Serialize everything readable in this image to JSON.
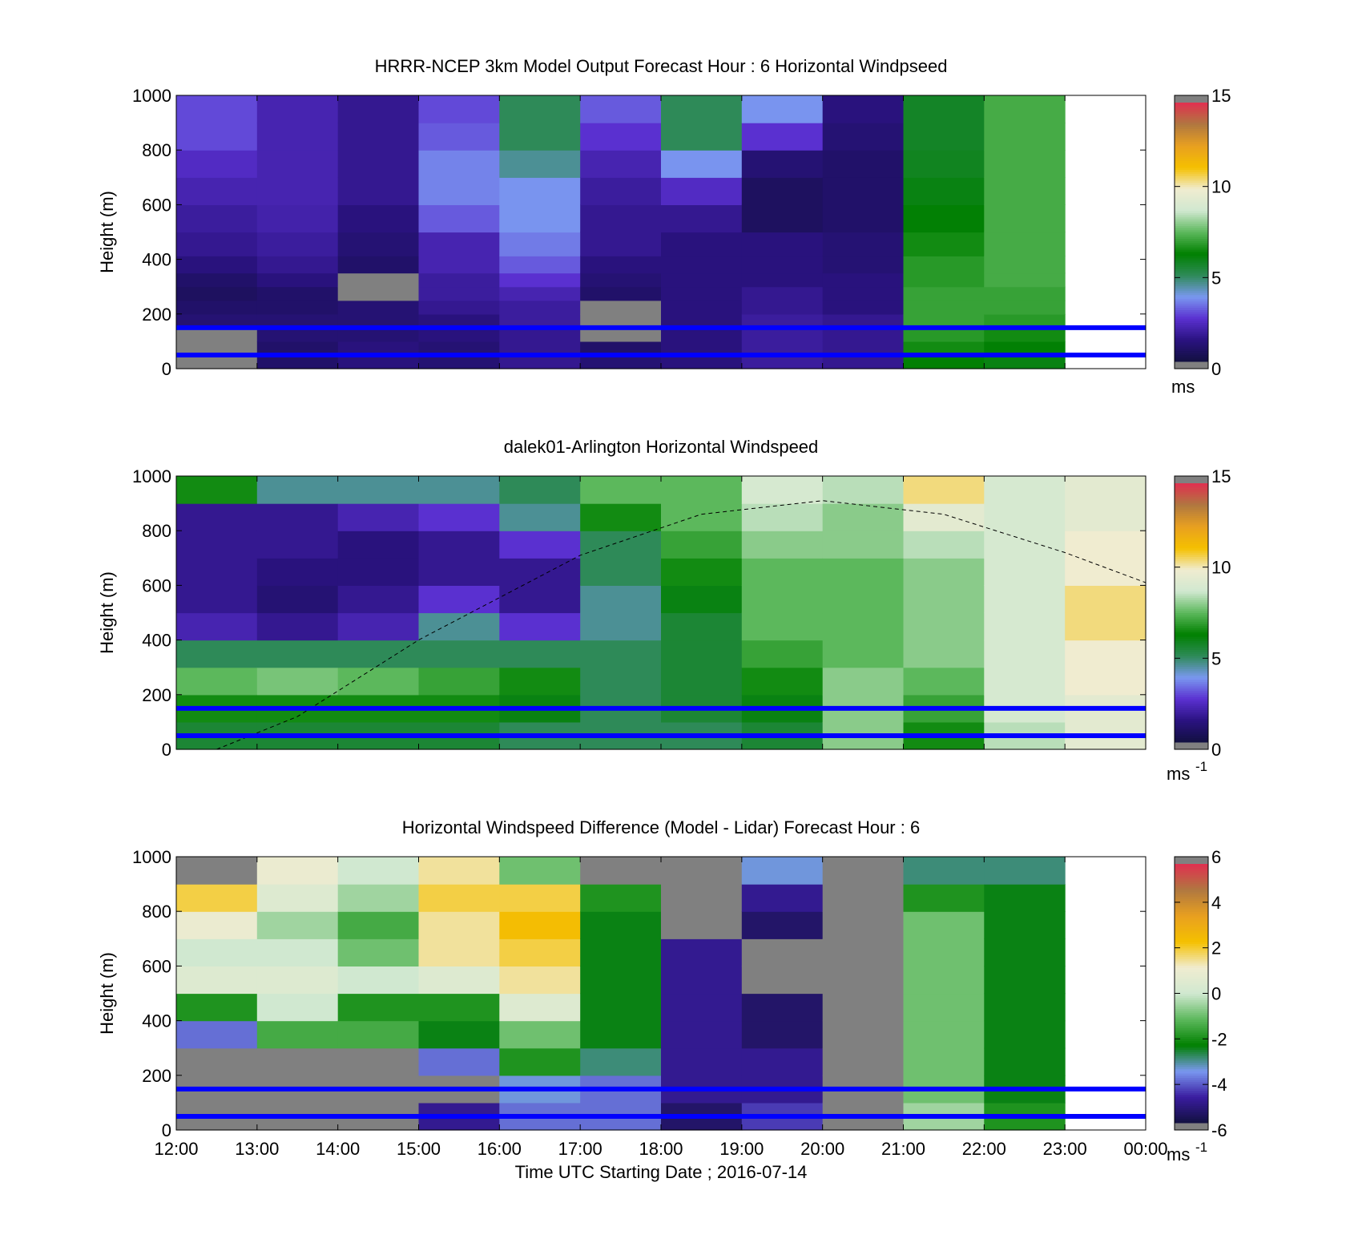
{
  "panels": [
    {
      "title": "HRRR-NCEP 3km Model Output   Forecast Hour : 6 Horizontal Windpseed",
      "ylabel": "Height (m)",
      "colorbar": {
        "min": 0,
        "max": 15,
        "ticks": [
          "0",
          "5",
          "10",
          "15"
        ],
        "unit": "ms",
        "unit_sup": ""
      }
    },
    {
      "title": "dalek01-Arlington  Horizontal Windspeed",
      "ylabel": "Height (m)",
      "colorbar": {
        "min": 0,
        "max": 15,
        "ticks": [
          "0",
          "5",
          "10",
          "15"
        ],
        "unit": "ms",
        "unit_sup": "-1"
      }
    },
    {
      "title": "Horizontal Windspeed Difference (Model - Lidar) Forecast Hour : 6",
      "ylabel": "Height (m)",
      "colorbar": {
        "min": -6,
        "max": 6,
        "ticks": [
          "-6",
          "-4",
          "-2",
          "0",
          "2",
          "4",
          "6"
        ],
        "unit": "ms",
        "unit_sup": "-1"
      }
    }
  ],
  "xlabel": "Time UTC  Starting Date ; 2016-07-14",
  "x_ticks": [
    "12:00",
    "13:00",
    "14:00",
    "15:00",
    "16:00",
    "17:00",
    "18:00",
    "19:00",
    "20:00",
    "21:00",
    "22:00",
    "23:00",
    "00:00"
  ],
  "y_ticks": [
    "0",
    "200",
    "400",
    "600",
    "800",
    "1000"
  ],
  "colors": {
    "reference_lines": "#0000ff",
    "missing": "#808080",
    "speed_colormap": [
      "#121040",
      "#2a1280",
      "#5a30d0",
      "#7a98f0",
      "#2e8a58",
      "#008000",
      "#5cb85c",
      "#d0e8d0",
      "#f0ecd0",
      "#f5c000",
      "#e8a020",
      "#b07840",
      "#e03050"
    ],
    "difference_colormap": [
      "#121040",
      "#3a1ca0",
      "#7a98f0",
      "#008000",
      "#5cb85c",
      "#d0e8d0",
      "#f0ecd0",
      "#f5c000",
      "#e8a020",
      "#b07840",
      "#e03050"
    ]
  },
  "chart_data": [
    {
      "type": "heatmap",
      "title": "HRRR-NCEP 3km Model Output   Forecast Hour : 6 Horizontal Windpseed",
      "xlabel": "",
      "ylabel": "Height (m)",
      "x_range_hours_utc": [
        12,
        24
      ],
      "ylim": [
        0,
        1000
      ],
      "clim": [
        0,
        15
      ],
      "colorbar_unit": "ms",
      "hour_columns": [
        "12:00",
        "13:00",
        "14:00",
        "15:00",
        "16:00",
        "17:00",
        "18:00",
        "19:00",
        "20:00",
        "21:00",
        "22:00"
      ],
      "height_levels_m": [
        25,
        75,
        125,
        175,
        225,
        275,
        325,
        375,
        450,
        550,
        650,
        750,
        850,
        950
      ],
      "values": [
        [
          null,
          null,
          null,
          1.0,
          0.8,
          0.6,
          0.8,
          1.2,
          1.5,
          1.7,
          2.0,
          2.3,
          2.8,
          2.8
        ],
        [
          0.8,
          0.8,
          1.0,
          1.0,
          0.8,
          0.8,
          1.2,
          1.5,
          1.7,
          1.9,
          2.0,
          2.0,
          2.0,
          2.0
        ],
        [
          1.2,
          1.2,
          1.0,
          1.0,
          1.0,
          null,
          null,
          0.8,
          1.0,
          1.2,
          1.5,
          1.5,
          1.5,
          1.5
        ],
        [
          1.0,
          1.0,
          1.2,
          1.2,
          1.5,
          1.7,
          1.7,
          2.0,
          2.0,
          3.0,
          3.5,
          3.5,
          3.0,
          2.8
        ],
        [
          1.5,
          1.5,
          1.5,
          1.7,
          1.7,
          2.0,
          2.5,
          3.0,
          3.4,
          3.7,
          3.7,
          4.5,
          5.0,
          5.0
        ],
        [
          1.0,
          0.8,
          null,
          null,
          null,
          0.8,
          1.0,
          1.2,
          1.5,
          1.5,
          1.7,
          2.0,
          2.5,
          3.0
        ],
        [
          1.2,
          1.2,
          1.2,
          1.2,
          1.2,
          1.2,
          1.2,
          1.2,
          1.2,
          1.5,
          2.3,
          3.7,
          5.0,
          5.0
        ],
        [
          1.7,
          1.7,
          1.7,
          1.7,
          1.5,
          1.5,
          1.2,
          1.2,
          1.2,
          0.6,
          0.6,
          1.0,
          2.5,
          3.7
        ],
        [
          1.5,
          1.5,
          1.5,
          1.5,
          1.2,
          1.2,
          1.2,
          1.0,
          1.0,
          0.8,
          0.8,
          0.8,
          1.0,
          1.2
        ],
        [
          6.2,
          6.5,
          6.8,
          7.0,
          7.0,
          7.0,
          6.8,
          6.8,
          6.5,
          6.2,
          6.0,
          5.8,
          5.7,
          5.7
        ],
        [
          6.0,
          6.2,
          6.5,
          6.8,
          7.0,
          7.0,
          7.2,
          7.2,
          7.2,
          7.2,
          7.2,
          7.2,
          7.2,
          7.2
        ]
      ],
      "reference_lines_m": [
        50,
        150
      ]
    },
    {
      "type": "heatmap",
      "title": "dalek01-Arlington  Horizontal Windspeed",
      "xlabel": "",
      "ylabel": "Height (m)",
      "x_range_hours_utc": [
        12,
        24
      ],
      "ylim": [
        0,
        1000
      ],
      "clim": [
        0,
        15
      ],
      "colorbar_unit": "ms-1",
      "hour_columns": [
        "12:00",
        "13:00",
        "14:00",
        "15:00",
        "16:00",
        "17:00",
        "18:00",
        "19:00",
        "20:00",
        "21:00",
        "22:00",
        "23:00"
      ],
      "height_levels_m": [
        50,
        150,
        250,
        350,
        450,
        550,
        650,
        750,
        850,
        950
      ],
      "values": [
        [
          5.5,
          6.5,
          7.5,
          5.0,
          2.0,
          1.5,
          1.5,
          1.5,
          1.5,
          6.5
        ],
        [
          5.5,
          6.5,
          7.8,
          5.0,
          1.5,
          1.0,
          1.2,
          1.5,
          1.5,
          4.5
        ],
        [
          5.5,
          6.5,
          7.5,
          5.0,
          2.0,
          1.5,
          1.2,
          1.2,
          2.0,
          4.5
        ],
        [
          5.5,
          6.5,
          7.0,
          5.0,
          4.5,
          2.5,
          1.5,
          1.5,
          2.5,
          4.5
        ],
        [
          5.0,
          6.0,
          6.5,
          5.0,
          2.5,
          1.5,
          1.5,
          2.5,
          4.5,
          5.0
        ],
        [
          5.0,
          5.0,
          5.0,
          5.0,
          4.5,
          4.5,
          5.0,
          5.0,
          6.5,
          7.5
        ],
        [
          5.0,
          5.5,
          5.5,
          5.5,
          5.5,
          6.0,
          6.5,
          7.0,
          7.5,
          7.5
        ],
        [
          5.5,
          6.0,
          6.5,
          7.0,
          7.5,
          7.5,
          7.5,
          8.0,
          8.5,
          9.0
        ],
        [
          8.0,
          8.0,
          8.0,
          7.5,
          7.5,
          7.5,
          7.5,
          8.0,
          8.0,
          8.5
        ],
        [
          6.5,
          7.0,
          7.5,
          8.0,
          8.0,
          8.0,
          8.0,
          8.5,
          9.5,
          10.5
        ],
        [
          8.5,
          9.0,
          9.0,
          9.0,
          9.0,
          9.0,
          9.0,
          9.0,
          9.0,
          9.0
        ],
        [
          9.5,
          9.5,
          10.0,
          10.0,
          10.5,
          10.5,
          10.0,
          10.0,
          9.5,
          9.5
        ]
      ],
      "boundary_layer_curve_m": [
        [
          12.5,
          0
        ],
        [
          13.5,
          120
        ],
        [
          15,
          400
        ],
        [
          17,
          710
        ],
        [
          18.5,
          860
        ],
        [
          20,
          910
        ],
        [
          21.5,
          860
        ],
        [
          23,
          720
        ],
        [
          24,
          610
        ]
      ],
      "reference_lines_m": [
        50,
        150
      ]
    },
    {
      "type": "heatmap",
      "title": "Horizontal Windspeed Difference (Model - Lidar) Forecast Hour : 6",
      "xlabel": "Time UTC  Starting Date ; 2016-07-14",
      "ylabel": "Height (m)",
      "x_range_hours_utc": [
        12,
        24
      ],
      "ylim": [
        0,
        1000
      ],
      "clim": [
        -6,
        6
      ],
      "colorbar_unit": "ms-1",
      "hour_columns": [
        "12:00",
        "13:00",
        "14:00",
        "15:00",
        "16:00",
        "17:00",
        "18:00",
        "19:00",
        "20:00",
        "21:00",
        "22:00"
      ],
      "height_levels_m": [
        50,
        150,
        250,
        350,
        450,
        550,
        650,
        750,
        850,
        950
      ],
      "values": [
        [
          null,
          null,
          null,
          -4.0,
          -2.0,
          0.5,
          0.0,
          1.0,
          2.0,
          null
        ],
        [
          null,
          null,
          null,
          -1.5,
          0.0,
          0.5,
          0.0,
          -0.5,
          0.5,
          1.0
        ],
        [
          null,
          null,
          null,
          -1.5,
          -2.0,
          0.0,
          -1.0,
          -1.5,
          -0.5,
          0.0
        ],
        [
          -5.0,
          null,
          -4.0,
          -2.5,
          -2.0,
          0.5,
          1.5,
          1.5,
          2.0,
          1.5
        ],
        [
          -4.0,
          -3.5,
          -2.0,
          -1.0,
          0.5,
          1.5,
          2.0,
          2.5,
          2.0,
          -1.0
        ],
        [
          -4.0,
          -4.0,
          -3.0,
          -2.5,
          -2.5,
          -2.5,
          -2.5,
          -2.5,
          -2.0,
          null
        ],
        [
          -5.5,
          -5.0,
          -5.0,
          -5.0,
          -5.0,
          -5.0,
          -5.0,
          null,
          null,
          null
        ],
        [
          -4.5,
          -5.0,
          -5.0,
          -5.5,
          -5.5,
          null,
          null,
          -5.5,
          -5.0,
          -3.5
        ],
        [
          null,
          null,
          null,
          null,
          null,
          null,
          null,
          null,
          null,
          null
        ],
        [
          -0.5,
          -1.0,
          -1.0,
          -1.0,
          -1.0,
          -1.0,
          -1.0,
          -1.0,
          -2.0,
          -3.0
        ],
        [
          -2.0,
          -2.5,
          -2.5,
          -2.5,
          -2.5,
          -2.5,
          -2.5,
          -2.5,
          -2.5,
          -3.0
        ]
      ],
      "reference_lines_m": [
        50,
        150
      ]
    }
  ]
}
